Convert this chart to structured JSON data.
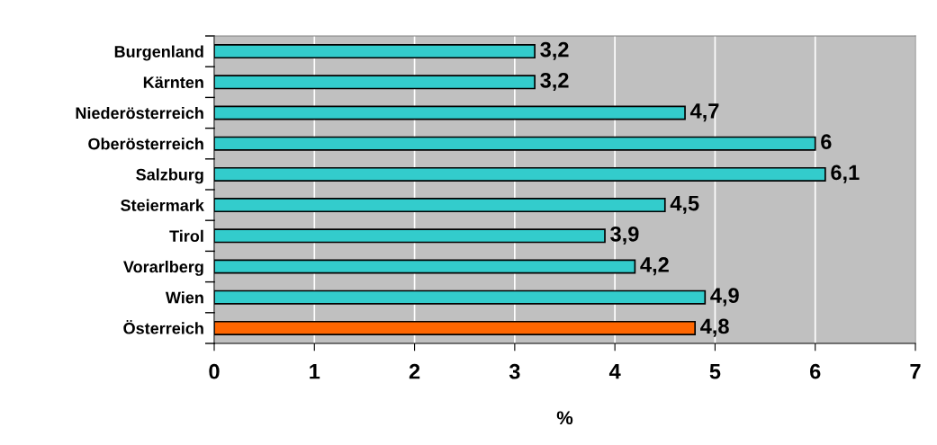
{
  "chart_data": {
    "type": "bar",
    "orientation": "horizontal",
    "xlabel": "%",
    "categories": [
      "Burgenland",
      "Kärnten",
      "Niederösterreich",
      "Oberösterreich",
      "Salzburg",
      "Steiermark",
      "Tirol",
      "Vorarlberg",
      "Wien",
      "Österreich"
    ],
    "values": [
      3.2,
      3.2,
      4.7,
      6,
      6.1,
      4.5,
      3.9,
      4.2,
      4.9,
      4.8
    ],
    "value_labels": [
      "3,2",
      "3,2",
      "4,7",
      "6",
      "6,1",
      "4,5",
      "3,9",
      "4,2",
      "4,9",
      "4,8"
    ],
    "colors": [
      "#33cccc",
      "#33cccc",
      "#33cccc",
      "#33cccc",
      "#33cccc",
      "#33cccc",
      "#33cccc",
      "#33cccc",
      "#33cccc",
      "#ff6600"
    ],
    "xlim": [
      0,
      7
    ],
    "xticks": [
      0,
      1,
      2,
      3,
      4,
      5,
      6,
      7
    ],
    "grid": "x"
  }
}
